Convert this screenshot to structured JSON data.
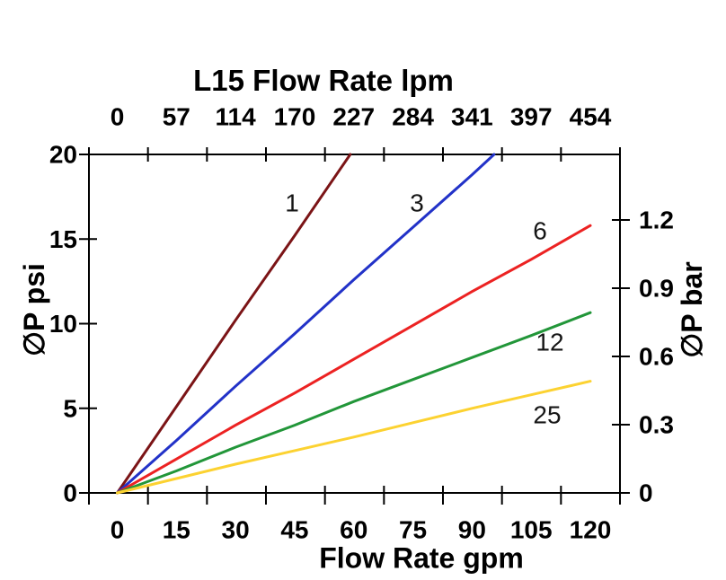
{
  "chart": {
    "title": "L15 Flow Rate lpm",
    "top_axis": {
      "unit": "lpm",
      "tick_labels": [
        "0",
        "57",
        "114",
        "170",
        "227",
        "284",
        "341",
        "397",
        "454"
      ]
    },
    "bottom_axis": {
      "title": "Flow Rate gpm",
      "tick_labels": [
        "0",
        "15",
        "30",
        "45",
        "60",
        "75",
        "90",
        "105",
        "120"
      ]
    },
    "left_axis": {
      "title": "∅P psi",
      "tick_labels": [
        "0",
        "5",
        "10",
        "15",
        "20"
      ],
      "range": [
        0,
        20
      ]
    },
    "right_axis": {
      "title": "∅P bar",
      "tick_labels": [
        "0",
        "0.3",
        "0.6",
        "0.9",
        "1.2"
      ]
    }
  },
  "chart_data": {
    "type": "line",
    "title": "L15 Flow Rate lpm",
    "xlabel_bottom": "Flow Rate gpm",
    "xlabel_top": "L15 Flow Rate lpm",
    "ylabel_left": "∅P psi",
    "ylabel_right": "∅P bar",
    "x_gpm_ticks": [
      0,
      15,
      30,
      45,
      60,
      75,
      90,
      105,
      120
    ],
    "x_lpm_ticks": [
      0,
      57,
      114,
      170,
      227,
      284,
      341,
      397,
      454
    ],
    "y_psi_ticks": [
      0,
      5,
      10,
      15,
      20
    ],
    "y_bar_ticks": [
      0,
      0.3,
      0.6,
      0.9,
      1.2
    ],
    "xlim_gpm": [
      0,
      120
    ],
    "ylim_psi": [
      0,
      20
    ],
    "grid": false,
    "series": [
      {
        "name": "1",
        "color": "#7B1416",
        "points_gpm_psi": [
          [
            0,
            0
          ],
          [
            15,
            5.1
          ],
          [
            30,
            10.2
          ],
          [
            45,
            15.2
          ],
          [
            59.1,
            20
          ]
        ],
        "label_xy": [
          325,
          226
        ]
      },
      {
        "name": "3",
        "color": "#2232C8",
        "points_gpm_psi": [
          [
            0,
            0
          ],
          [
            15,
            3.1
          ],
          [
            30,
            6.3
          ],
          [
            45,
            9.4
          ],
          [
            60,
            12.6
          ],
          [
            75,
            15.7
          ],
          [
            90,
            18.8
          ],
          [
            95.6,
            20
          ]
        ],
        "label_xy": [
          464,
          226
        ]
      },
      {
        "name": "6",
        "color": "#EC2222",
        "points_gpm_psi": [
          [
            0,
            0
          ],
          [
            15,
            2.0
          ],
          [
            30,
            4.0
          ],
          [
            45,
            5.9
          ],
          [
            60,
            7.9
          ],
          [
            75,
            9.9
          ],
          [
            90,
            11.9
          ],
          [
            105,
            13.8
          ],
          [
            120,
            15.8
          ]
        ],
        "label_xy": [
          601,
          257
        ]
      },
      {
        "name": "12",
        "color": "#229639",
        "points_gpm_psi": [
          [
            0,
            0
          ],
          [
            15,
            1.3
          ],
          [
            30,
            2.7
          ],
          [
            45,
            4.0
          ],
          [
            60,
            5.4
          ],
          [
            75,
            6.7
          ],
          [
            90,
            8.0
          ],
          [
            105,
            9.3
          ],
          [
            120,
            10.65
          ]
        ],
        "label_xy": [
          612,
          381
        ]
      },
      {
        "name": "25",
        "color": "#FCD231",
        "points_gpm_psi": [
          [
            0,
            0
          ],
          [
            15,
            0.85
          ],
          [
            30,
            1.7
          ],
          [
            45,
            2.5
          ],
          [
            60,
            3.3
          ],
          [
            75,
            4.15
          ],
          [
            90,
            5.0
          ],
          [
            105,
            5.8
          ],
          [
            120,
            6.6
          ]
        ],
        "label_xy": [
          609,
          462
        ]
      }
    ]
  }
}
